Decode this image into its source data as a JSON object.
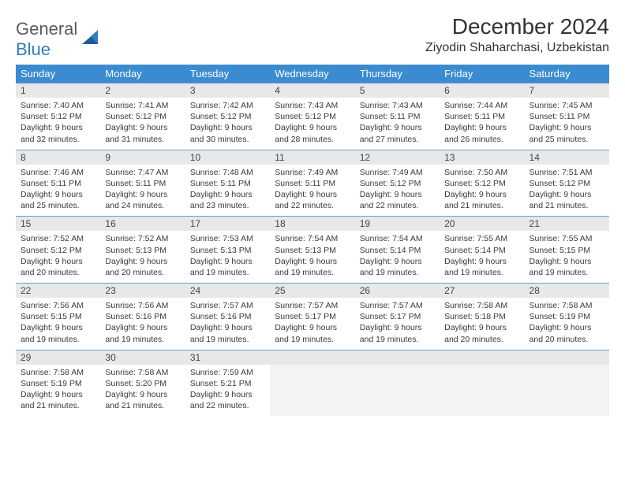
{
  "brand": {
    "line1": "General",
    "line2": "Blue"
  },
  "title": "December 2024",
  "location": "Ziyodin Shaharchasi, Uzbekistan",
  "colors": {
    "header_bg": "#3a8bd0",
    "header_text": "#ffffff",
    "rule": "#6a9bc8",
    "dayhdr_bg": "#e8e8e8",
    "empty_bg": "#f3f3f3",
    "brand_blue": "#2f7dc4"
  },
  "weekdays": [
    "Sunday",
    "Monday",
    "Tuesday",
    "Wednesday",
    "Thursday",
    "Friday",
    "Saturday"
  ],
  "weeks": [
    [
      {
        "n": "1",
        "sr": "7:40 AM",
        "ss": "5:12 PM",
        "dl": "9 hours and 32 minutes."
      },
      {
        "n": "2",
        "sr": "7:41 AM",
        "ss": "5:12 PM",
        "dl": "9 hours and 31 minutes."
      },
      {
        "n": "3",
        "sr": "7:42 AM",
        "ss": "5:12 PM",
        "dl": "9 hours and 30 minutes."
      },
      {
        "n": "4",
        "sr": "7:43 AM",
        "ss": "5:12 PM",
        "dl": "9 hours and 28 minutes."
      },
      {
        "n": "5",
        "sr": "7:43 AM",
        "ss": "5:11 PM",
        "dl": "9 hours and 27 minutes."
      },
      {
        "n": "6",
        "sr": "7:44 AM",
        "ss": "5:11 PM",
        "dl": "9 hours and 26 minutes."
      },
      {
        "n": "7",
        "sr": "7:45 AM",
        "ss": "5:11 PM",
        "dl": "9 hours and 25 minutes."
      }
    ],
    [
      {
        "n": "8",
        "sr": "7:46 AM",
        "ss": "5:11 PM",
        "dl": "9 hours and 25 minutes."
      },
      {
        "n": "9",
        "sr": "7:47 AM",
        "ss": "5:11 PM",
        "dl": "9 hours and 24 minutes."
      },
      {
        "n": "10",
        "sr": "7:48 AM",
        "ss": "5:11 PM",
        "dl": "9 hours and 23 minutes."
      },
      {
        "n": "11",
        "sr": "7:49 AM",
        "ss": "5:11 PM",
        "dl": "9 hours and 22 minutes."
      },
      {
        "n": "12",
        "sr": "7:49 AM",
        "ss": "5:12 PM",
        "dl": "9 hours and 22 minutes."
      },
      {
        "n": "13",
        "sr": "7:50 AM",
        "ss": "5:12 PM",
        "dl": "9 hours and 21 minutes."
      },
      {
        "n": "14",
        "sr": "7:51 AM",
        "ss": "5:12 PM",
        "dl": "9 hours and 21 minutes."
      }
    ],
    [
      {
        "n": "15",
        "sr": "7:52 AM",
        "ss": "5:12 PM",
        "dl": "9 hours and 20 minutes."
      },
      {
        "n": "16",
        "sr": "7:52 AM",
        "ss": "5:13 PM",
        "dl": "9 hours and 20 minutes."
      },
      {
        "n": "17",
        "sr": "7:53 AM",
        "ss": "5:13 PM",
        "dl": "9 hours and 19 minutes."
      },
      {
        "n": "18",
        "sr": "7:54 AM",
        "ss": "5:13 PM",
        "dl": "9 hours and 19 minutes."
      },
      {
        "n": "19",
        "sr": "7:54 AM",
        "ss": "5:14 PM",
        "dl": "9 hours and 19 minutes."
      },
      {
        "n": "20",
        "sr": "7:55 AM",
        "ss": "5:14 PM",
        "dl": "9 hours and 19 minutes."
      },
      {
        "n": "21",
        "sr": "7:55 AM",
        "ss": "5:15 PM",
        "dl": "9 hours and 19 minutes."
      }
    ],
    [
      {
        "n": "22",
        "sr": "7:56 AM",
        "ss": "5:15 PM",
        "dl": "9 hours and 19 minutes."
      },
      {
        "n": "23",
        "sr": "7:56 AM",
        "ss": "5:16 PM",
        "dl": "9 hours and 19 minutes."
      },
      {
        "n": "24",
        "sr": "7:57 AM",
        "ss": "5:16 PM",
        "dl": "9 hours and 19 minutes."
      },
      {
        "n": "25",
        "sr": "7:57 AM",
        "ss": "5:17 PM",
        "dl": "9 hours and 19 minutes."
      },
      {
        "n": "26",
        "sr": "7:57 AM",
        "ss": "5:17 PM",
        "dl": "9 hours and 19 minutes."
      },
      {
        "n": "27",
        "sr": "7:58 AM",
        "ss": "5:18 PM",
        "dl": "9 hours and 20 minutes."
      },
      {
        "n": "28",
        "sr": "7:58 AM",
        "ss": "5:19 PM",
        "dl": "9 hours and 20 minutes."
      }
    ],
    [
      {
        "n": "29",
        "sr": "7:58 AM",
        "ss": "5:19 PM",
        "dl": "9 hours and 21 minutes."
      },
      {
        "n": "30",
        "sr": "7:58 AM",
        "ss": "5:20 PM",
        "dl": "9 hours and 21 minutes."
      },
      {
        "n": "31",
        "sr": "7:59 AM",
        "ss": "5:21 PM",
        "dl": "9 hours and 22 minutes."
      },
      null,
      null,
      null,
      null
    ]
  ],
  "labels": {
    "sunrise": "Sunrise:",
    "sunset": "Sunset:",
    "daylight": "Daylight:"
  }
}
